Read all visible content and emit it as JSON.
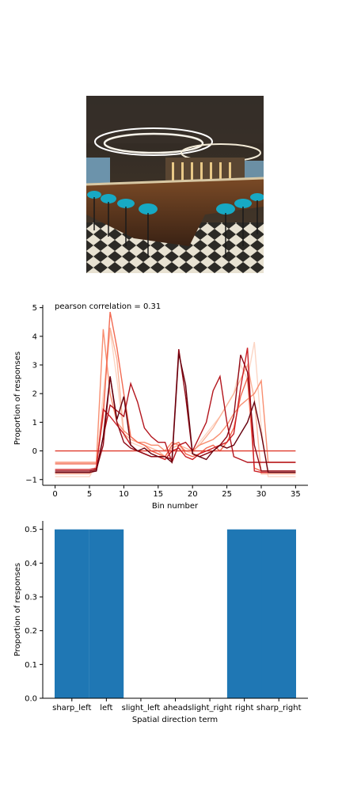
{
  "photo": {
    "description_icon": "bar-interior-photo"
  },
  "chart_data": [
    {
      "type": "line",
      "annotation": "pearson correlation = 0.31",
      "xlabel": "Bin number",
      "ylabel": "Proportion of responses",
      "xlim": [
        -1.8,
        36.8
      ],
      "ylim": [
        -1.2,
        5.1
      ],
      "xticks": [
        0,
        5,
        10,
        15,
        20,
        25,
        30,
        35
      ],
      "yticks": [
        -1,
        0,
        1,
        2,
        3,
        4,
        5
      ],
      "series": [
        {
          "color": "#fcd5c4",
          "values": [
            -0.9,
            -0.9,
            -0.9,
            -0.9,
            -0.9,
            -0.9,
            -0.5,
            2.0,
            4.2,
            2.5,
            0.5,
            0.3,
            0.2,
            0.1,
            0.0,
            -0.1,
            -0.3,
            0.0,
            0.1,
            0.0,
            -0.1,
            0.3,
            0.6,
            0.9,
            1.2,
            1.6,
            2.0,
            3.0,
            2.5,
            3.8,
            0.8,
            -0.9,
            -0.9,
            -0.9,
            -0.9,
            -0.9
          ]
        },
        {
          "color": "#fbb49a",
          "values": [
            -0.8,
            -0.8,
            -0.8,
            -0.8,
            -0.8,
            -0.8,
            -0.6,
            1.5,
            4.3,
            3.2,
            0.6,
            0.4,
            0.3,
            0.2,
            0.1,
            0.0,
            -0.2,
            0.1,
            0.2,
            0.1,
            0.0,
            0.2,
            0.5,
            0.8,
            1.2,
            1.6,
            2.0,
            2.5,
            3.0,
            1.8,
            -0.8,
            -0.8,
            -0.8,
            -0.8,
            -0.8,
            -0.8
          ]
        },
        {
          "color": "#f88e70",
          "values": [
            -0.4,
            -0.4,
            -0.4,
            -0.4,
            -0.4,
            -0.4,
            -0.4,
            4.25,
            2.0,
            1.0,
            0.7,
            0.5,
            0.3,
            0.3,
            0.2,
            0.2,
            0.0,
            0.3,
            0.2,
            0.0,
            0.0,
            0.2,
            0.3,
            0.4,
            0.6,
            0.9,
            1.3,
            1.6,
            1.8,
            2.0,
            2.45,
            -0.4,
            -0.4,
            -0.4,
            -0.4,
            -0.4
          ]
        },
        {
          "color": "#f26a52",
          "values": [
            -0.45,
            -0.45,
            -0.45,
            -0.45,
            -0.45,
            -0.45,
            -0.45,
            1.2,
            4.85,
            3.6,
            2.0,
            0.5,
            0.3,
            0.2,
            0.0,
            -0.1,
            -0.2,
            0.2,
            0.3,
            -0.1,
            -0.2,
            -0.1,
            0.1,
            0.2,
            0.0,
            0.3,
            0.8,
            1.9,
            2.55,
            -0.6,
            -0.7,
            -0.7,
            -0.7,
            -0.7,
            -0.7,
            -0.7
          ]
        },
        {
          "color": "#e03b2e",
          "values": [
            0,
            0,
            0,
            0,
            0,
            0,
            0,
            0,
            0,
            0,
            0,
            0,
            0,
            0,
            0,
            0,
            0,
            0,
            0,
            0,
            0,
            0,
            0,
            0,
            0,
            0,
            0,
            0,
            0,
            0,
            0,
            0,
            0,
            0,
            0,
            0
          ]
        },
        {
          "color": "#cc2026",
          "values": [
            -0.65,
            -0.65,
            -0.65,
            -0.65,
            -0.65,
            -0.65,
            -0.6,
            1.45,
            1.2,
            0.9,
            0.6,
            0.2,
            0.0,
            -0.1,
            -0.2,
            -0.2,
            -0.3,
            0.0,
            0.1,
            -0.2,
            -0.3,
            -0.1,
            0.0,
            0.1,
            0.2,
            0.3,
            0.6,
            2.2,
            3.6,
            -0.7,
            -0.75,
            -0.75,
            -0.75,
            -0.75,
            -0.75,
            -0.75
          ]
        },
        {
          "color": "#b3151d",
          "values": [
            -0.75,
            -0.75,
            -0.75,
            -0.75,
            -0.75,
            -0.75,
            -0.7,
            0.5,
            1.6,
            1.4,
            1.2,
            2.35,
            1.7,
            0.8,
            0.5,
            0.3,
            0.3,
            -0.4,
            0.2,
            0.3,
            0.0,
            0.5,
            1.0,
            2.1,
            2.6,
            1.0,
            -0.2,
            -0.3,
            -0.4,
            -0.4,
            -0.4,
            -0.4,
            -0.4,
            -0.4,
            -0.4,
            -0.4
          ]
        },
        {
          "color": "#900a16",
          "values": [
            -0.7,
            -0.7,
            -0.7,
            -0.7,
            -0.7,
            -0.7,
            -0.65,
            0.2,
            2.6,
            1.0,
            0.3,
            0.1,
            0.0,
            -0.1,
            -0.2,
            -0.2,
            -0.2,
            -0.3,
            3.55,
            1.9,
            -0.1,
            -0.2,
            -0.1,
            0.0,
            0.2,
            0.5,
            1.2,
            3.35,
            2.75,
            0.2,
            -0.7,
            -0.7,
            -0.7,
            -0.7,
            -0.7,
            -0.7
          ]
        },
        {
          "color": "#67000d",
          "values": [
            -0.75,
            -0.75,
            -0.75,
            -0.75,
            -0.75,
            -0.75,
            -0.7,
            0.5,
            2.6,
            1.1,
            1.9,
            0.2,
            0.0,
            0.1,
            -0.1,
            -0.2,
            -0.2,
            -0.4,
            3.4,
            2.3,
            -0.1,
            -0.2,
            -0.3,
            0.0,
            0.2,
            0.1,
            0.2,
            0.6,
            1.0,
            1.7,
            0.6,
            -0.75,
            -0.75,
            -0.75,
            -0.75,
            -0.75
          ]
        }
      ]
    },
    {
      "type": "bar",
      "xlabel": "Spatial direction term",
      "ylabel": "Proportion of responses",
      "categories": [
        "sharp_left",
        "left",
        "slight_left",
        "ahead",
        "slight_right",
        "right",
        "sharp_right"
      ],
      "values": [
        0.5,
        0.5,
        0,
        0,
        0,
        0.5,
        0.5
      ],
      "ylim": [
        0,
        0.525
      ],
      "yticks": [
        0.0,
        0.1,
        0.2,
        0.3,
        0.4,
        0.5
      ],
      "bar_color": "#1f77b4"
    }
  ]
}
